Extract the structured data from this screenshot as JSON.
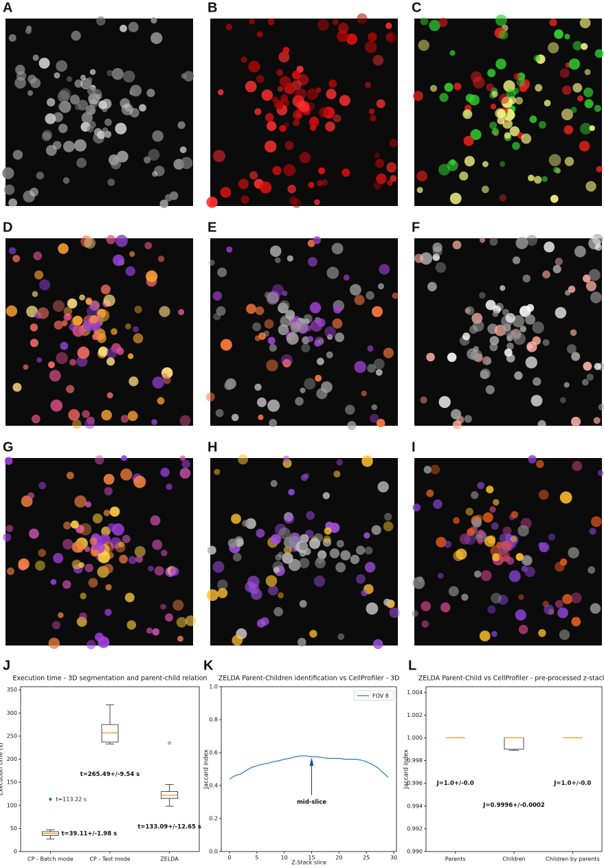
{
  "panels": [
    "A",
    "B",
    "C",
    "D",
    "E",
    "F",
    "G",
    "H",
    "I"
  ],
  "chart_data": [
    {
      "type": "box",
      "panel_label": "J",
      "title": "Execution time - 3D segmentation and parent-child relation",
      "ylabel": "Execution time (s)",
      "categories": [
        "CP - Batch mode",
        "CP - Test mode",
        "ZELDA"
      ],
      "ylim": [
        0,
        357
      ],
      "yticks": [
        0,
        50,
        100,
        150,
        200,
        250,
        300,
        350
      ],
      "box_color": "#333333",
      "median_color": "#ff7f0e",
      "marker_color": "#1f77b4",
      "boxes": [
        {
          "whislo": 27,
          "q1": 35,
          "med": 39,
          "q3": 43,
          "whishi": 47
        },
        {
          "whislo": 233,
          "q1": 237,
          "med": 257,
          "q3": 275,
          "whishi": 318
        },
        {
          "whislo": 98,
          "q1": 115,
          "med": 122,
          "q3": 130,
          "whishi": 145,
          "fliers": [
            235
          ]
        }
      ],
      "marker_values": [
        113.22,
        null,
        null
      ],
      "marker_labels": [
        "t=113.22 s",
        null,
        null
      ],
      "box_labels": [
        "t=39.11+/-1.98 s",
        "t=265.49+/-9.54 s",
        "t=133.09+/-12.65 s"
      ]
    },
    {
      "type": "line",
      "panel_label": "K",
      "title": "ZELDA Parent-Children identification vs CellProfiler - 3D",
      "xlabel": "Z-Stack slice",
      "ylabel": "Jaccard index",
      "x": [
        0,
        1,
        2,
        3,
        4,
        5,
        6,
        7,
        8,
        9,
        10,
        11,
        12,
        13,
        14,
        15,
        16,
        17,
        18,
        19,
        20,
        21,
        22,
        23,
        24,
        25,
        26,
        27,
        28,
        29
      ],
      "series": [
        {
          "name": "FOV 8",
          "color": "#1f77b4",
          "values": [
            0.44,
            0.46,
            0.47,
            0.49,
            0.51,
            0.52,
            0.53,
            0.535,
            0.545,
            0.55,
            0.56,
            0.565,
            0.575,
            0.58,
            0.58,
            0.575,
            0.575,
            0.57,
            0.565,
            0.565,
            0.565,
            0.56,
            0.56,
            0.56,
            0.555,
            0.545,
            0.53,
            0.51,
            0.48,
            0.45
          ]
        }
      ],
      "xlim": [
        -1.5,
        30.5
      ],
      "xticks": [
        0,
        5,
        10,
        15,
        20,
        25,
        30
      ],
      "ylim": [
        0,
        1
      ],
      "yticks": [
        {
          "value": 0,
          "label": "0.0"
        },
        0.2,
        0.4,
        0.6,
        0.8,
        {
          "value": 1,
          "label": "1.0"
        }
      ],
      "legend": "upper right",
      "annotation": {
        "text": "mid-slice",
        "x": 15,
        "y": 0.57,
        "text_y": 0.3
      }
    },
    {
      "type": "box",
      "panel_label": "L",
      "title": "ZELDA Parent-Child vs CellProfiler - pre-processed z-stacks",
      "ylabel": "Jaccard index",
      "categories": [
        "Parents",
        "Children",
        "Children by parents"
      ],
      "ylim": [
        0.99,
        1.0045
      ],
      "yticks": [
        {
          "value": 0.99,
          "label": "0.990"
        },
        {
          "value": 0.992,
          "label": "0.992"
        },
        {
          "value": 0.994,
          "label": "0.994"
        },
        {
          "value": 0.996,
          "label": "0.996"
        },
        {
          "value": 0.998,
          "label": "0.998"
        },
        {
          "value": 1,
          "label": "1.000"
        },
        {
          "value": 1.002,
          "label": "1.002"
        },
        {
          "value": 1.004,
          "label": "1.004"
        }
      ],
      "box_color": "#333333",
      "median_color": "#ff7f0e",
      "boxes": [
        {
          "whislo": 1,
          "q1": 1,
          "med": 1,
          "q3": 1,
          "whishi": 1
        },
        {
          "whislo": 0.9989,
          "q1": 0.999,
          "med": 1,
          "q3": 1,
          "whishi": 1
        },
        {
          "whislo": 1,
          "q1": 1,
          "med": 1,
          "q3": 1,
          "whishi": 1
        }
      ],
      "box_labels": [
        "J=1.0+/-0.0",
        "J=0.9996+/-0.0002",
        "J=1.0+/-0.0"
      ]
    }
  ]
}
